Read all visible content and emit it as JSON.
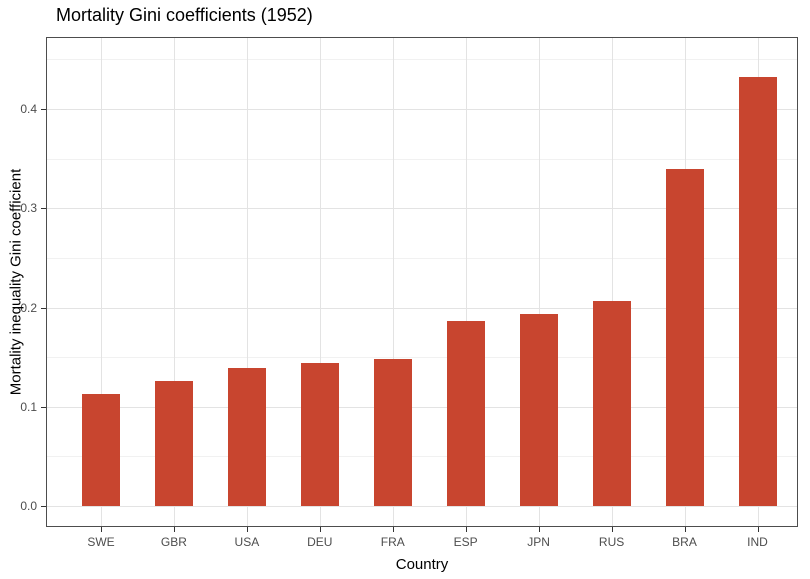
{
  "title": "Mortality Gini coefficients (1952)",
  "chart_data": {
    "type": "bar",
    "title": "Mortality Gini coefficients (1952)",
    "xlabel": "Country",
    "ylabel": "Mortality inequality Gini coefficient",
    "categories": [
      "SWE",
      "GBR",
      "USA",
      "DEU",
      "FRA",
      "ESP",
      "JPN",
      "RUS",
      "BRA",
      "IND"
    ],
    "values": [
      0.113,
      0.126,
      0.139,
      0.144,
      0.148,
      0.186,
      0.194,
      0.207,
      0.34,
      0.432
    ],
    "ylim": [
      0,
      0.47
    ],
    "yticks": [
      0.0,
      0.1,
      0.2,
      0.3,
      0.4
    ],
    "ytick_labels": [
      "0.0",
      "0.1",
      "0.2",
      "0.3",
      "0.4"
    ],
    "minor_yticks": [
      0.05,
      0.15,
      0.25,
      0.35,
      0.45
    ],
    "grid": "major horizontal + minor horizontal + vertical at category centers",
    "legend_position": "none",
    "colors": {
      "bar": "#C8452F",
      "grid_major": "#E3E3E3",
      "grid_minor": "#F1F1F1",
      "panel_border": "#4D4D4D",
      "tick_text": "#4D4D4D",
      "title_text": "#000000",
      "background": "#FFFFFF"
    }
  }
}
